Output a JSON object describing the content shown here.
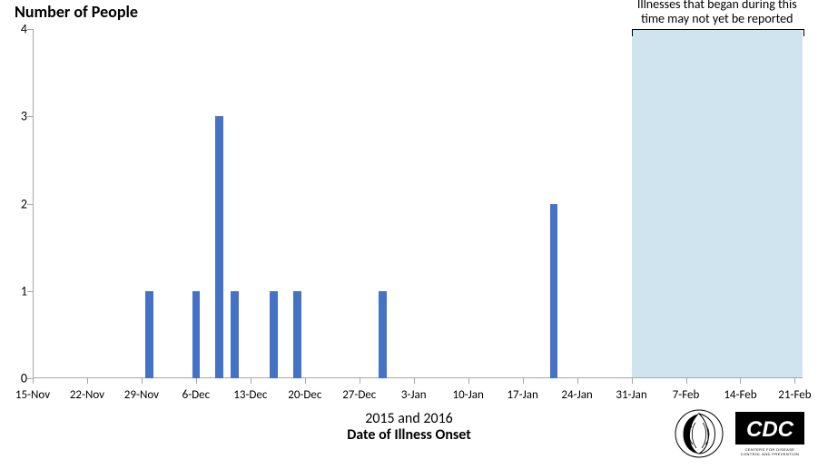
{
  "chart": {
    "type": "bar",
    "y_title": "Number of People",
    "x_title_line1": "2015 and 2016",
    "x_title_line2": "Date of Illness Onset",
    "y_title_fontsize": 18,
    "x_title_fontsize": 16,
    "background_color": "#ffffff",
    "axis_color": "#a6a6a6",
    "tick_label_fontsize": 14,
    "ylim": [
      0,
      4
    ],
    "yticks": [
      0,
      1,
      2,
      3,
      4
    ],
    "x_range_days": [
      0,
      99
    ],
    "xticks": [
      {
        "day": 0,
        "label": "15-Nov"
      },
      {
        "day": 7,
        "label": "22-Nov"
      },
      {
        "day": 14,
        "label": "29-Nov"
      },
      {
        "day": 21,
        "label": "6-Dec"
      },
      {
        "day": 28,
        "label": "13-Dec"
      },
      {
        "day": 35,
        "label": "20-Dec"
      },
      {
        "day": 42,
        "label": "27-Dec"
      },
      {
        "day": 49,
        "label": "3-Jan"
      },
      {
        "day": 56,
        "label": "10-Jan"
      },
      {
        "day": 63,
        "label": "17-Jan"
      },
      {
        "day": 70,
        "label": "24-Jan"
      },
      {
        "day": 77,
        "label": "31-Jan"
      },
      {
        "day": 84,
        "label": "7-Feb"
      },
      {
        "day": 91,
        "label": "14-Feb"
      },
      {
        "day": 98,
        "label": "21-Feb"
      }
    ],
    "bars": [
      {
        "day": 15,
        "value": 1
      },
      {
        "day": 21,
        "value": 1
      },
      {
        "day": 24,
        "value": 3
      },
      {
        "day": 26,
        "value": 1
      },
      {
        "day": 31,
        "value": 1
      },
      {
        "day": 34,
        "value": 1
      },
      {
        "day": 45,
        "value": 1
      },
      {
        "day": 67,
        "value": 2
      }
    ],
    "bar_color": "#4472c4",
    "bar_width_days": 1.0,
    "shaded_region": {
      "from_day": 77,
      "to_day": 99,
      "color": "#cfe4ef",
      "note_line1": "Illnesses that began during this",
      "note_line2": "time may not yet be reported",
      "note_fontsize": 14
    }
  },
  "logos": {
    "hhs_label": "HHS logo",
    "cdc_label": "CDC logo"
  }
}
